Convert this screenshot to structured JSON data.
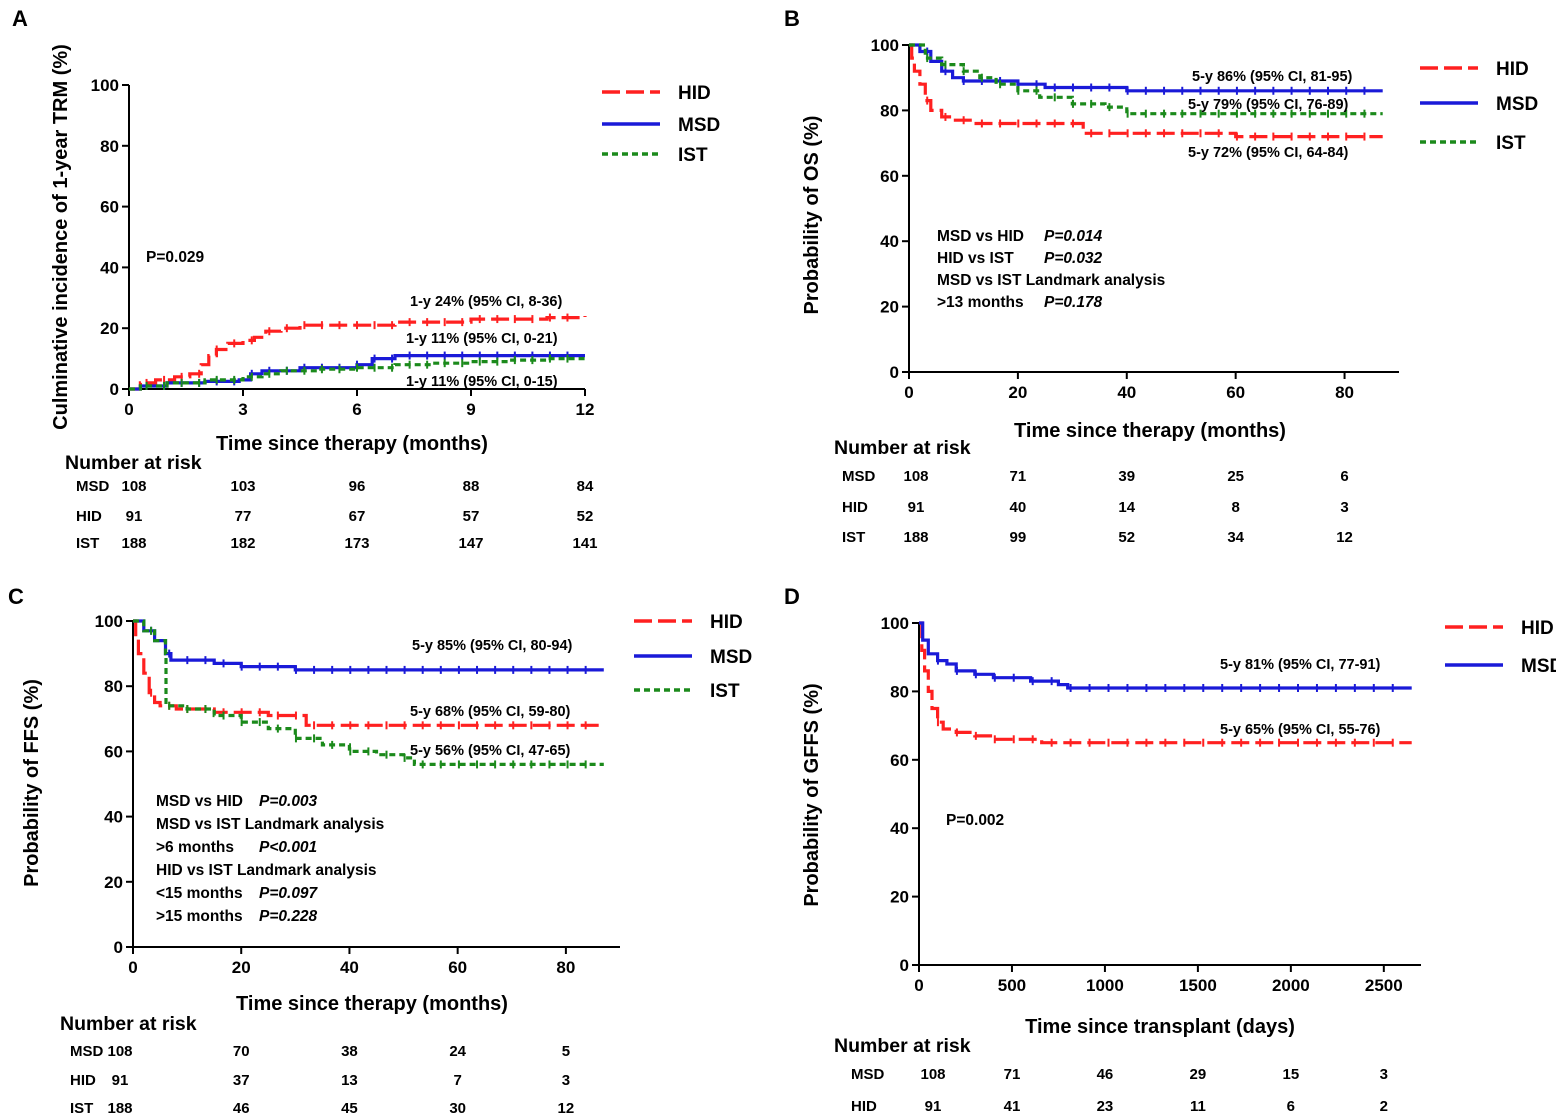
{
  "chart_data": [
    {
      "panel": "A",
      "type": "line",
      "title": "",
      "xlabel": "Time since therapy (months)",
      "ylabel": "Culminative incidence of 1-year TRM (%)",
      "xlim": [
        0,
        12
      ],
      "ylim": [
        0,
        100
      ],
      "xticks": [
        "0",
        "3",
        "6",
        "9",
        "12"
      ],
      "yticks": [
        "0",
        "20",
        "40",
        "60",
        "80",
        "100"
      ],
      "legend": [
        "HID",
        "MSD",
        "IST"
      ],
      "series": [
        {
          "name": "HID",
          "color": "#ff2020",
          "style": "dashed",
          "x": [
            0,
            0.3,
            0.7,
            1.2,
            1.6,
            1.9,
            2.1,
            2.3,
            2.6,
            3.0,
            3.3,
            3.6,
            4.0,
            4.5,
            5.0,
            5.5,
            6.0,
            6.5,
            7.0,
            8.0,
            9.0,
            10.0,
            11.0,
            12.0
          ],
          "y": [
            0,
            2,
            3,
            4,
            5,
            8,
            11,
            13,
            15,
            16,
            17,
            19,
            20,
            21,
            21,
            21,
            21,
            21,
            22,
            22,
            23,
            23,
            23.5,
            24
          ]
        },
        {
          "name": "MSD",
          "color": "#1a1ad8",
          "style": "solid",
          "x": [
            0,
            0.3,
            1.0,
            2.0,
            2.9,
            3.2,
            3.5,
            4.0,
            4.5,
            5.5,
            6.0,
            6.4,
            7.0,
            8.0,
            10.0,
            12.0
          ],
          "y": [
            0,
            1,
            2,
            2.5,
            3,
            5,
            6,
            6,
            7,
            7,
            8,
            10,
            11,
            11,
            11,
            11
          ]
        },
        {
          "name": "IST",
          "color": "#1b8a1b",
          "style": "dotted",
          "x": [
            0,
            0.3,
            1.0,
            2.0,
            3.0,
            3.5,
            4.0,
            5.0,
            6.0,
            7.0,
            8.0,
            9.0,
            10.0,
            11.0,
            12.0
          ],
          "y": [
            0,
            1,
            2,
            3,
            4,
            5,
            6,
            6.5,
            7,
            8,
            8.5,
            9,
            9.5,
            10,
            10
          ]
        }
      ],
      "annotations": [
        "1-y 24% (95% CI, 8-36)",
        "1-y 11% (95% CI, 0-21)",
        "1-y 11% (95% CI, 0-15)"
      ],
      "text_block": [
        [
          "P=0.029"
        ]
      ],
      "risk_table": {
        "title": "Number at risk",
        "rows": [
          {
            "label": "MSD",
            "values": [
              "108",
              "103",
              "96",
              "88",
              "84"
            ]
          },
          {
            "label": "HID",
            "values": [
              "91",
              "77",
              "67",
              "57",
              "52"
            ]
          },
          {
            "label": "IST",
            "values": [
              "188",
              "182",
              "173",
              "147",
              "141"
            ]
          }
        ]
      }
    },
    {
      "panel": "B",
      "type": "line",
      "title": "",
      "xlabel": "Time since therapy (months)",
      "ylabel": "Probability of OS (%)",
      "xlim": [
        0,
        90
      ],
      "ylim": [
        0,
        100
      ],
      "xticks": [
        "0",
        "20",
        "40",
        "60",
        "80"
      ],
      "yticks": [
        "0",
        "20",
        "40",
        "60",
        "80",
        "100"
      ],
      "legend": [
        "HID",
        "MSD",
        "IST"
      ],
      "series": [
        {
          "name": "HID",
          "color": "#ff2020",
          "style": "dashed",
          "x": [
            0,
            0.5,
            1,
            2,
            3,
            4,
            6,
            8,
            12,
            20,
            31,
            32,
            40,
            60,
            87
          ],
          "y": [
            100,
            96,
            92,
            88,
            83,
            80,
            78,
            77,
            76,
            76,
            76,
            73,
            73,
            72,
            72
          ]
        },
        {
          "name": "MSD",
          "color": "#1a1ad8",
          "style": "solid",
          "x": [
            0,
            2,
            4,
            6,
            8,
            10,
            15,
            20,
            25,
            30,
            40,
            60,
            87
          ],
          "y": [
            100,
            98,
            95,
            92,
            90,
            89,
            89,
            88,
            87,
            87,
            86,
            86,
            86
          ]
        },
        {
          "name": "IST",
          "color": "#1b8a1b",
          "style": "dotted",
          "x": [
            0,
            3,
            6,
            10,
            13,
            16,
            20,
            24,
            30,
            36,
            40,
            60,
            87
          ],
          "y": [
            100,
            96,
            94,
            92,
            90,
            88,
            86,
            84,
            82,
            81,
            79,
            79,
            79
          ]
        }
      ],
      "annotations": [
        "5-y 86% (95% CI, 81-95)",
        "5-y 79% (95% CI, 76-89)",
        "5-y 72% (95% CI, 64-84)"
      ],
      "text_block": [
        [
          "MSD vs HID",
          "P=0.014"
        ],
        [
          "HID vs IST",
          "P=0.032"
        ],
        [
          "MSD vs IST Landmark analysis",
          ""
        ],
        [
          ">13 months",
          "P=0.178"
        ]
      ],
      "risk_table": {
        "title": "Number at risk",
        "rows": [
          {
            "label": "MSD",
            "values": [
              "108",
              "71",
              "39",
              "25",
              "6"
            ]
          },
          {
            "label": "HID",
            "values": [
              "91",
              "40",
              "14",
              "8",
              "3"
            ]
          },
          {
            "label": "IST",
            "values": [
              "188",
              "99",
              "52",
              "34",
              "12"
            ]
          }
        ]
      }
    },
    {
      "panel": "C",
      "type": "line",
      "title": "",
      "xlabel": "Time since therapy (months)",
      "ylabel": "Probability of FFS (%)",
      "xlim": [
        0,
        90
      ],
      "ylim": [
        0,
        100
      ],
      "xticks": [
        "0",
        "20",
        "40",
        "60",
        "80"
      ],
      "yticks": [
        "0",
        "20",
        "40",
        "60",
        "80",
        "100"
      ],
      "legend": [
        "HID",
        "MSD",
        "IST"
      ],
      "series": [
        {
          "name": "HID",
          "color": "#ff2020",
          "style": "dashed",
          "x": [
            0,
            0.5,
            1,
            2,
            3,
            4,
            5,
            8,
            15,
            25,
            31,
            32,
            40,
            60,
            87
          ],
          "y": [
            100,
            95,
            90,
            84,
            78,
            75,
            74,
            73,
            72,
            71,
            71,
            68,
            68,
            68,
            68
          ]
        },
        {
          "name": "MSD",
          "color": "#1a1ad8",
          "style": "solid",
          "x": [
            0,
            2,
            4,
            6,
            7,
            10,
            15,
            20,
            25,
            30,
            40,
            60,
            87
          ],
          "y": [
            100,
            97,
            94,
            90,
            88,
            88,
            87,
            86,
            86,
            85,
            85,
            85,
            85
          ]
        },
        {
          "name": "IST",
          "color": "#1b8a1b",
          "style": "dotted",
          "x": [
            0,
            2,
            4,
            6,
            6.1,
            10,
            15,
            20,
            25,
            30,
            35,
            40,
            45,
            50,
            52,
            60,
            87
          ],
          "y": [
            100,
            97,
            94,
            90,
            74,
            73,
            71,
            69,
            67,
            64,
            62,
            60,
            59,
            58,
            56,
            56,
            56
          ]
        }
      ],
      "annotations": [
        "5-y 85% (95% CI, 80-94)",
        "5-y 68% (95% CI, 59-80)",
        "5-y 56% (95% CI, 47-65)"
      ],
      "text_block": [
        [
          "MSD vs HID",
          "P=0.003"
        ],
        [
          "MSD vs IST  Landmark analysis",
          ""
        ],
        [
          ">6 months",
          "P<0.001"
        ],
        [
          "HID vs IST Landmark analysis",
          ""
        ],
        [
          "<15 months",
          "P=0.097"
        ],
        [
          ">15 months",
          "P=0.228"
        ]
      ],
      "risk_table": {
        "title": "Number at risk",
        "rows": [
          {
            "label": "MSD",
            "values": [
              "108",
              "70",
              "38",
              "24",
              "5"
            ]
          },
          {
            "label": "HID",
            "values": [
              "91",
              "37",
              "13",
              "7",
              "3"
            ]
          },
          {
            "label": "IST",
            "values": [
              "188",
              "46",
              "45",
              "30",
              "12"
            ]
          }
        ]
      }
    },
    {
      "panel": "D",
      "type": "line",
      "title": "",
      "xlabel": "Time since transplant (days)",
      "ylabel": "Probability of GFFS (%)",
      "xlim": [
        0,
        2700
      ],
      "ylim": [
        0,
        100
      ],
      "xticks": [
        "0",
        "500",
        "1000",
        "1500",
        "2000",
        "2500"
      ],
      "yticks": [
        "0",
        "20",
        "40",
        "60",
        "80",
        "100"
      ],
      "legend": [
        "HID",
        "MSD"
      ],
      "series": [
        {
          "name": "HID",
          "color": "#ff2020",
          "style": "dashed",
          "x": [
            0,
            15,
            30,
            50,
            70,
            100,
            130,
            200,
            300,
            400,
            500,
            650,
            660,
            800,
            1000,
            2650
          ],
          "y": [
            100,
            92,
            86,
            80,
            75,
            71,
            69,
            68,
            67,
            66,
            66,
            66,
            65,
            65,
            65,
            65
          ]
        },
        {
          "name": "MSD",
          "color": "#1a1ad8",
          "style": "solid",
          "x": [
            0,
            20,
            50,
            100,
            150,
            200,
            300,
            400,
            500,
            600,
            700,
            750,
            800,
            1000,
            2650
          ],
          "y": [
            100,
            95,
            91,
            89,
            88,
            86,
            85,
            84,
            84,
            83,
            83,
            82,
            81,
            81,
            81
          ]
        }
      ],
      "annotations": [
        "5-y 81% (95% CI, 77-91)",
        "5-y 65% (95% CI, 55-76)"
      ],
      "text_block": [
        [
          "P=0.002"
        ]
      ],
      "risk_table": {
        "title": "Number at risk",
        "rows": [
          {
            "label": "MSD",
            "values": [
              "108",
              "71",
              "46",
              "29",
              "15",
              "3"
            ]
          },
          {
            "label": "HID",
            "values": [
              "91",
              "41",
              "23",
              "11",
              "6",
              "2"
            ]
          }
        ]
      }
    }
  ]
}
